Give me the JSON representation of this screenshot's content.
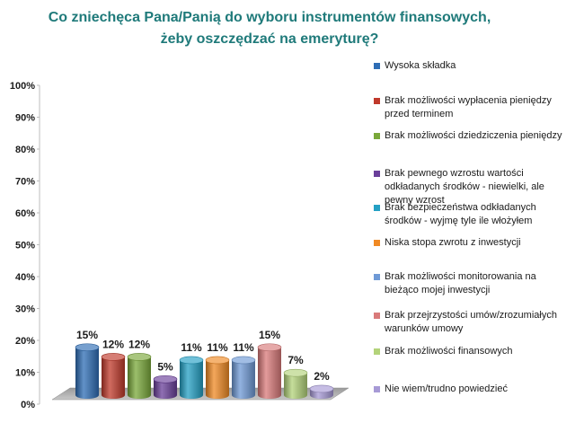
{
  "chart_data": {
    "type": "bar",
    "title": "Co zniechęca Pana/Panią do wyboru instrumentów finansowych, żeby oszczędzać na emeryturę?",
    "title_lines": [
      "Co zniechęca Pana/Panią do wyboru instrumentów finansowych,",
      "żeby oszczędzać na emeryturę?"
    ],
    "ylim": [
      0,
      100
    ],
    "y_ticks": [
      "0%",
      "10%",
      "20%",
      "30%",
      "40%",
      "50%",
      "60%",
      "70%",
      "80%",
      "90%",
      "100%"
    ],
    "legend_position": "right",
    "grid": false,
    "series": [
      {
        "name": "Wysoka składka",
        "value": 15,
        "label": "15%",
        "color": "#2e6db5"
      },
      {
        "name": "Brak możliwości wypłacenia pieniędzy przed terminem",
        "value": 12,
        "label": "12%",
        "color": "#c0392b"
      },
      {
        "name": "Brak możliwości dziedziczenia pieniędzy",
        "value": 12,
        "label": "12%",
        "color": "#7aa83a"
      },
      {
        "name": "Brak pewnego wzrostu wartości odkładanych środków - niewielki, ale pewny wzrost",
        "value": 5,
        "label": "5%",
        "color": "#6a3f9a"
      },
      {
        "name": "Brak bezpieczeństwa odkładanych środków - wyjmę tyle ile włożyłem",
        "value": 11,
        "label": "11%",
        "color": "#24a0c4"
      },
      {
        "name": "Niska stopa zwrotu z inwestycji",
        "value": 11,
        "label": "11%",
        "color": "#f08a24"
      },
      {
        "name": "Brak możliwości monitorowania na bieżąco mojej inwestycji",
        "value": 11,
        "label": "11%",
        "color": "#6f9ad6"
      },
      {
        "name": "Brak przejrzystości umów/zrozumiałych warunków umowy",
        "value": 15,
        "label": "15%",
        "color": "#d97a7a"
      },
      {
        "name": "Brak możliwości finansowych",
        "value": 7,
        "label": "7%",
        "color": "#b3d37a"
      },
      {
        "name": "Nie wiem/trudno powiedzieć",
        "value": 2,
        "label": "2%",
        "color": "#a79ad6"
      }
    ]
  }
}
